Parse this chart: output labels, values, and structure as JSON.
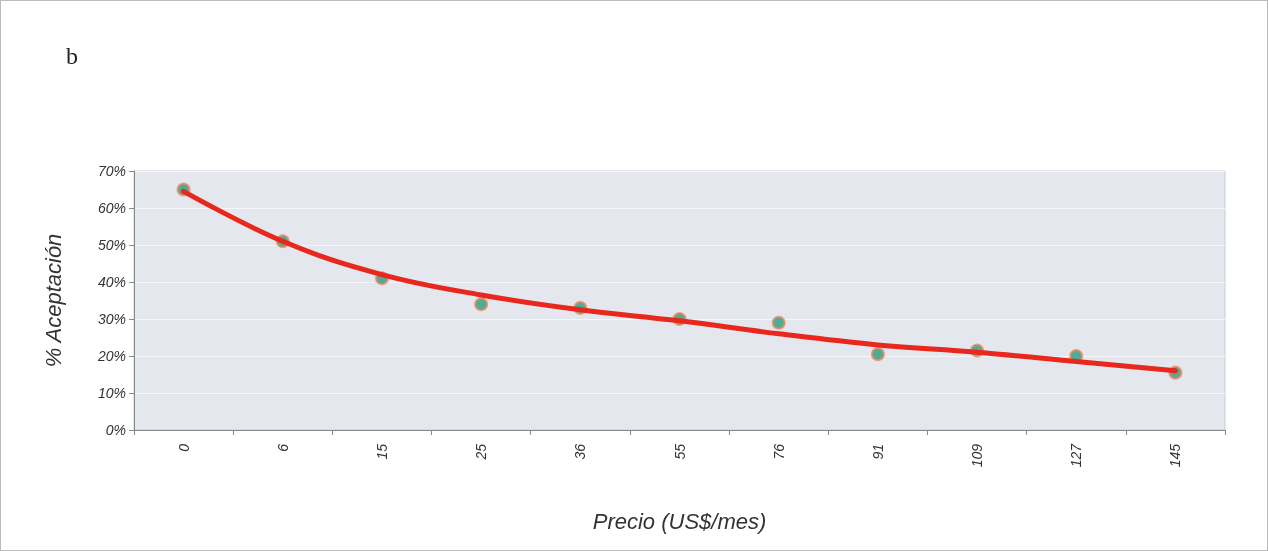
{
  "chart_data": {
    "type": "scatter",
    "title": "b",
    "xlabel": "Precio (US$/mes)",
    "ylabel": "% Aceptación",
    "categories": [
      "0",
      "6",
      "15",
      "25",
      "36",
      "55",
      "76",
      "91",
      "109",
      "127",
      "145"
    ],
    "series": [
      {
        "color": "#2a9a80",
        "marker": "circle",
        "values": [
          65,
          51,
          41,
          34,
          33,
          30,
          29,
          20.5,
          21.5,
          20,
          15.5
        ]
      },
      {
        "type": "line",
        "color": "#e8281c",
        "marker": "none",
        "line_style": "solid",
        "values": [
          64.5,
          51,
          42,
          36.5,
          32.5,
          29.5,
          26,
          23,
          21,
          18.5,
          16
        ]
      }
    ],
    "ylim": [
      0,
      70
    ],
    "yticks": [
      {
        "value": 0,
        "label": "0%"
      },
      {
        "value": 10,
        "label": "10%"
      },
      {
        "value": 20,
        "label": "20%"
      },
      {
        "value": 30,
        "label": "30%"
      },
      {
        "value": 40,
        "label": "40%"
      },
      {
        "value": 50,
        "label": "50%"
      },
      {
        "value": 60,
        "label": "60%"
      },
      {
        "value": 70,
        "label": "70%"
      }
    ],
    "grid": "y"
  }
}
